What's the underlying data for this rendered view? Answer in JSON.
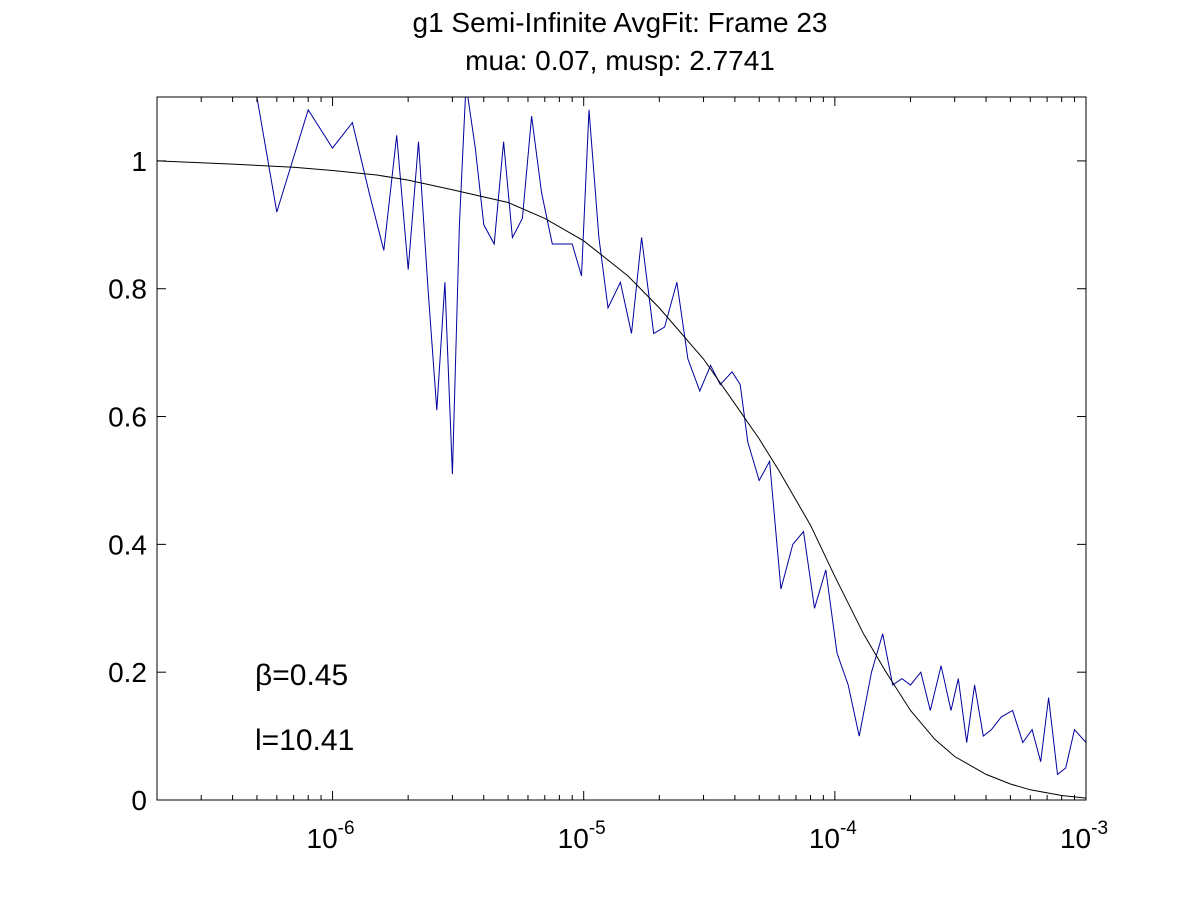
{
  "chart_data": {
    "type": "line",
    "title": "g1 Semi-Infinite AvgFit: Frame 23",
    "subtitle": "mua: 0.07, musp: 2.7741",
    "xlabel": "",
    "ylabel": "",
    "xscale": "log",
    "xlim": [
      2e-07,
      0.001
    ],
    "ylim": [
      0,
      1.1
    ],
    "grid": false,
    "x_tick_labels": [
      {
        "value": 1e-06,
        "base": "10",
        "exp": "-6"
      },
      {
        "value": 1e-05,
        "base": "10",
        "exp": "-5"
      },
      {
        "value": 0.0001,
        "base": "10",
        "exp": "-4"
      },
      {
        "value": 0.001,
        "base": "10",
        "exp": "-3"
      }
    ],
    "y_ticks": [
      {
        "value": 0,
        "label": "0"
      },
      {
        "value": 0.2,
        "label": "0.2"
      },
      {
        "value": 0.4,
        "label": "0.4"
      },
      {
        "value": 0.6,
        "label": "0.6"
      },
      {
        "value": 0.8,
        "label": "0.8"
      },
      {
        "value": 1,
        "label": "1"
      }
    ],
    "annotations": [
      "β=0.45",
      "l=10.41"
    ],
    "series": [
      {
        "color": "#0000a0",
        "points": [
          [
            5e-07,
            1.1
          ],
          [
            6e-07,
            0.92
          ],
          [
            8e-07,
            1.08
          ],
          [
            1e-06,
            1.02
          ],
          [
            1.2e-06,
            1.06
          ],
          [
            1.4e-06,
            0.95
          ],
          [
            1.6e-06,
            0.86
          ],
          [
            1.8e-06,
            1.04
          ],
          [
            2e-06,
            0.83
          ],
          [
            2.2e-06,
            1.03
          ],
          [
            2.4e-06,
            0.8
          ],
          [
            2.6e-06,
            0.61
          ],
          [
            2.8e-06,
            0.81
          ],
          [
            3e-06,
            0.51
          ],
          [
            3.2e-06,
            0.9
          ],
          [
            3.4e-06,
            1.12
          ],
          [
            3.7e-06,
            1.02
          ],
          [
            4e-06,
            0.9
          ],
          [
            4.4e-06,
            0.87
          ],
          [
            4.8e-06,
            1.03
          ],
          [
            5.2e-06,
            0.88
          ],
          [
            5.7e-06,
            0.91
          ],
          [
            6.2e-06,
            1.07
          ],
          [
            6.8e-06,
            0.95
          ],
          [
            7.5e-06,
            0.87
          ],
          [
            8.2e-06,
            0.87
          ],
          [
            9e-06,
            0.87
          ],
          [
            9.8e-06,
            0.82
          ],
          [
            1.05e-05,
            1.08
          ],
          [
            1.15e-05,
            0.88
          ],
          [
            1.25e-05,
            0.77
          ],
          [
            1.4e-05,
            0.81
          ],
          [
            1.55e-05,
            0.73
          ],
          [
            1.7e-05,
            0.88
          ],
          [
            1.9e-05,
            0.73
          ],
          [
            2.1e-05,
            0.74
          ],
          [
            2.35e-05,
            0.81
          ],
          [
            2.6e-05,
            0.69
          ],
          [
            2.9e-05,
            0.64
          ],
          [
            3.2e-05,
            0.68
          ],
          [
            3.5e-05,
            0.65
          ],
          [
            3.9e-05,
            0.67
          ],
          [
            4.2e-05,
            0.65
          ],
          [
            4.5e-05,
            0.56
          ],
          [
            5e-05,
            0.5
          ],
          [
            5.5e-05,
            0.53
          ],
          [
            6.1e-05,
            0.33
          ],
          [
            6.8e-05,
            0.4
          ],
          [
            7.5e-05,
            0.42
          ],
          [
            8.3e-05,
            0.3
          ],
          [
            9.2e-05,
            0.36
          ],
          [
            0.000102,
            0.23
          ],
          [
            0.000113,
            0.18
          ],
          [
            0.000125,
            0.1
          ],
          [
            0.00014,
            0.2
          ],
          [
            0.000155,
            0.26
          ],
          [
            0.00017,
            0.18
          ],
          [
            0.000185,
            0.19
          ],
          [
            0.0002,
            0.18
          ],
          [
            0.00022,
            0.2
          ],
          [
            0.00024,
            0.14
          ],
          [
            0.000265,
            0.21
          ],
          [
            0.00029,
            0.14
          ],
          [
            0.00031,
            0.19
          ],
          [
            0.000335,
            0.09
          ],
          [
            0.00036,
            0.18
          ],
          [
            0.00039,
            0.1
          ],
          [
            0.00042,
            0.11
          ],
          [
            0.00046,
            0.13
          ],
          [
            0.00051,
            0.14
          ],
          [
            0.00056,
            0.09
          ],
          [
            0.00061,
            0.11
          ],
          [
            0.00066,
            0.06
          ],
          [
            0.00071,
            0.16
          ],
          [
            0.00077,
            0.04
          ],
          [
            0.00083,
            0.05
          ],
          [
            0.0009,
            0.11
          ],
          [
            0.001,
            0.09
          ]
        ]
      },
      {
        "color": "#000000",
        "points": [
          [
            2e-07,
            1.0
          ],
          [
            4e-07,
            0.995
          ],
          [
            7e-07,
            0.99
          ],
          [
            1e-06,
            0.985
          ],
          [
            1.5e-06,
            0.978
          ],
          [
            2e-06,
            0.97
          ],
          [
            3e-06,
            0.955
          ],
          [
            5e-06,
            0.935
          ],
          [
            7e-06,
            0.91
          ],
          [
            1e-05,
            0.875
          ],
          [
            1.5e-05,
            0.82
          ],
          [
            2e-05,
            0.77
          ],
          [
            3e-05,
            0.69
          ],
          [
            4e-05,
            0.62
          ],
          [
            5e-05,
            0.565
          ],
          [
            6e-05,
            0.515
          ],
          [
            8e-05,
            0.43
          ],
          [
            0.0001,
            0.35
          ],
          [
            0.00013,
            0.26
          ],
          [
            0.00016,
            0.2
          ],
          [
            0.0002,
            0.14
          ],
          [
            0.00025,
            0.095
          ],
          [
            0.0003,
            0.068
          ],
          [
            0.0004,
            0.04
          ],
          [
            0.0005,
            0.025
          ],
          [
            0.0006,
            0.016
          ],
          [
            0.0008,
            0.007
          ],
          [
            0.001,
            0.003
          ]
        ]
      }
    ]
  }
}
